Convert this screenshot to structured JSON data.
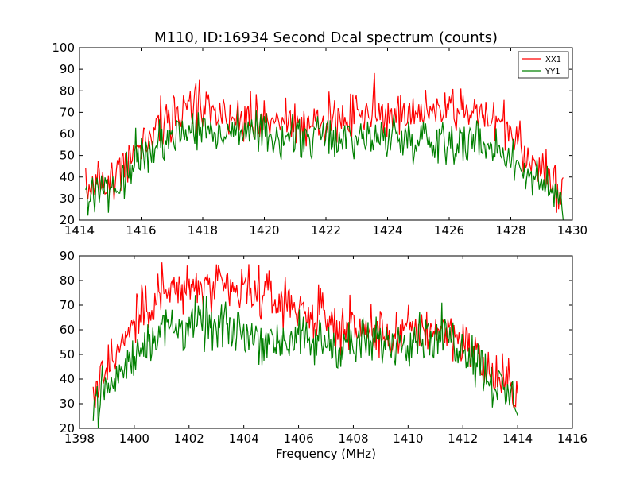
{
  "chart_data": [
    {
      "type": "line",
      "title": "M110, ID:16934 Second Dcal spectrum (counts)",
      "xlabel": "",
      "ylabel": "",
      "xlim": [
        1414,
        1430
      ],
      "ylim": [
        20,
        100
      ],
      "xticks": [
        1414,
        1416,
        1418,
        1420,
        1422,
        1424,
        1426,
        1428,
        1430
      ],
      "yticks": [
        20,
        30,
        40,
        50,
        60,
        70,
        80,
        90,
        100
      ],
      "legend": "top-right",
      "grid": false,
      "x": [
        1414.2,
        1414.6,
        1415.0,
        1415.4,
        1415.8,
        1416.2,
        1416.6,
        1417.0,
        1417.4,
        1417.8,
        1418.2,
        1418.6,
        1419.0,
        1419.4,
        1419.8,
        1420.2,
        1420.6,
        1421.0,
        1421.4,
        1421.8,
        1422.2,
        1422.6,
        1423.0,
        1423.4,
        1423.8,
        1424.2,
        1424.6,
        1425.0,
        1425.4,
        1425.8,
        1426.2,
        1426.6,
        1427.0,
        1427.4,
        1427.8,
        1428.2,
        1428.6,
        1429.0,
        1429.4,
        1429.7
      ],
      "series": [
        {
          "name": "XX1",
          "color": "#ff0000",
          "noise": 5,
          "values": [
            35,
            37,
            41,
            46,
            52,
            59,
            65,
            69,
            71,
            72,
            71,
            70,
            69,
            68,
            67,
            66,
            65,
            64,
            64,
            64,
            65,
            66,
            68,
            69,
            70,
            70,
            71,
            71,
            72,
            72,
            71,
            70,
            69,
            67,
            63,
            56,
            49,
            43,
            38,
            34
          ]
        },
        {
          "name": "YY1",
          "color": "#008000",
          "noise": 5,
          "values": [
            30,
            31,
            35,
            40,
            46,
            52,
            57,
            60,
            62,
            63,
            62,
            61,
            61,
            60,
            60,
            59,
            59,
            58,
            58,
            58,
            58,
            58,
            58,
            58,
            58,
            58,
            58,
            58,
            58,
            58,
            58,
            57,
            56,
            54,
            51,
            46,
            41,
            36,
            32,
            29
          ]
        }
      ]
    },
    {
      "type": "line",
      "title": "",
      "xlabel": "Frequency (MHz)",
      "ylabel": "",
      "xlim": [
        1398,
        1416
      ],
      "ylim": [
        20,
        90
      ],
      "xticks": [
        1398,
        1400,
        1402,
        1404,
        1406,
        1408,
        1410,
        1412,
        1414,
        1416
      ],
      "yticks": [
        20,
        30,
        40,
        50,
        60,
        70,
        80,
        90
      ],
      "grid": false,
      "x": [
        1398.5,
        1399.0,
        1399.5,
        1400.0,
        1400.5,
        1401.0,
        1401.5,
        1402.0,
        1402.5,
        1403.0,
        1403.5,
        1404.0,
        1404.5,
        1405.0,
        1405.5,
        1406.0,
        1406.5,
        1407.0,
        1407.5,
        1408.0,
        1408.5,
        1409.0,
        1409.5,
        1410.0,
        1410.5,
        1411.0,
        1411.5,
        1412.0,
        1412.5,
        1413.0,
        1413.5,
        1414.0
      ],
      "series": [
        {
          "name": "XX1",
          "color": "#ff0000",
          "noise": 5,
          "values": [
            38,
            45,
            53,
            62,
            70,
            74,
            76,
            77,
            77,
            76,
            76,
            75,
            74,
            73,
            71,
            69,
            66,
            64,
            62,
            60,
            59,
            58,
            58,
            59,
            60,
            61,
            60,
            56,
            49,
            42,
            38,
            36
          ]
        },
        {
          "name": "YY1",
          "color": "#008000",
          "noise": 5,
          "values": [
            31,
            36,
            42,
            49,
            56,
            60,
            61,
            62,
            62,
            61,
            60,
            59,
            57,
            56,
            56,
            56,
            55,
            55,
            54,
            54,
            54,
            55,
            56,
            57,
            58,
            58,
            57,
            54,
            48,
            40,
            34,
            32
          ]
        }
      ]
    }
  ]
}
